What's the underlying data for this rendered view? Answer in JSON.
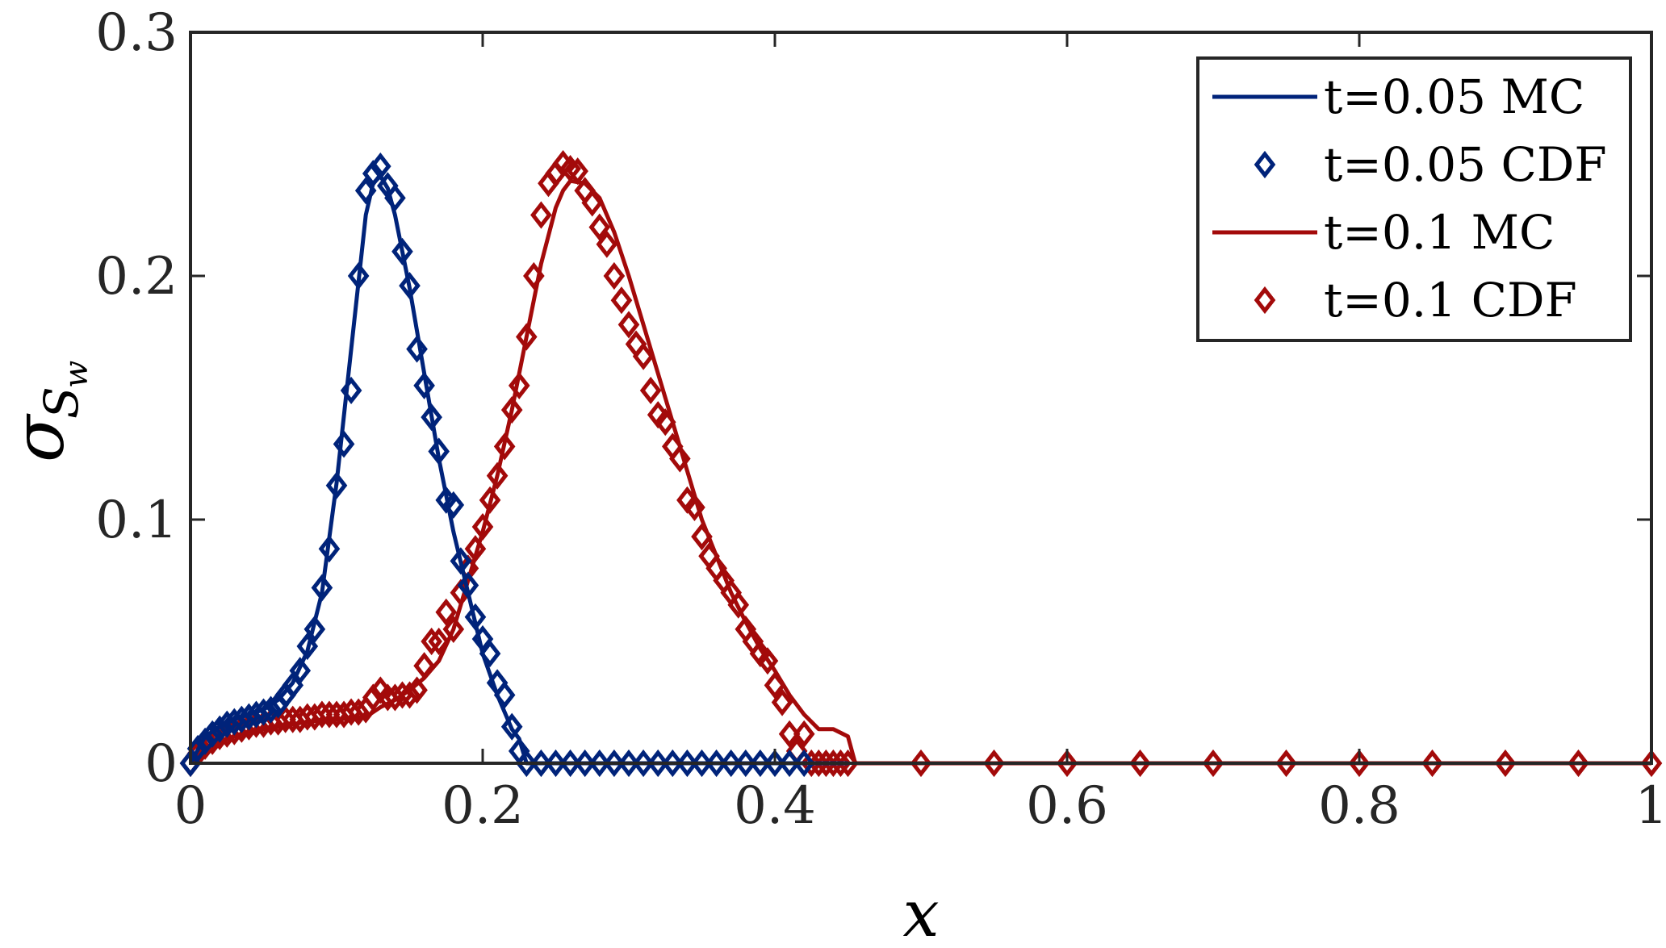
{
  "chart_data": {
    "type": "line",
    "xlabel": "x",
    "ylabel": {
      "main": "σ",
      "sub": "S",
      "subsub": "w"
    },
    "xlim": [
      0,
      1
    ],
    "ylim": [
      0,
      0.3
    ],
    "xticks": [
      0,
      0.2,
      0.4,
      0.6,
      0.8,
      1
    ],
    "xtick_labels": [
      "0",
      "0.2",
      "0.4",
      "0.6",
      "0.8",
      "1"
    ],
    "yticks": [
      0,
      0.1,
      0.2,
      0.3
    ],
    "ytick_labels": [
      "0",
      "0.1",
      "0.2",
      "0.3"
    ],
    "grid": false,
    "legend_position": "top-right",
    "series": [
      {
        "name": "t=0.05 MC",
        "style": "line",
        "color": "#00237a",
        "x": [
          0,
          0.01,
          0.02,
          0.03,
          0.04,
          0.05,
          0.06,
          0.07,
          0.08,
          0.09,
          0.1,
          0.11,
          0.12,
          0.125,
          0.13,
          0.135,
          0.14,
          0.15,
          0.16,
          0.17,
          0.18,
          0.19,
          0.2,
          0.21,
          0.22,
          0.225,
          0.23,
          0.24,
          0.3,
          0.4,
          0.45
        ],
        "values": [
          0,
          0.011,
          0.015,
          0.018,
          0.02,
          0.022,
          0.026,
          0.033,
          0.046,
          0.07,
          0.115,
          0.17,
          0.225,
          0.238,
          0.241,
          0.236,
          0.225,
          0.195,
          0.16,
          0.125,
          0.095,
          0.07,
          0.045,
          0.028,
          0.014,
          0.01,
          0,
          0,
          0,
          0,
          0
        ]
      },
      {
        "name": "t=0.05 CDF",
        "style": "marker",
        "color": "#00237a",
        "x": [
          0,
          0.005,
          0.01,
          0.015,
          0.02,
          0.025,
          0.03,
          0.035,
          0.04,
          0.045,
          0.05,
          0.055,
          0.06,
          0.065,
          0.07,
          0.075,
          0.08,
          0.085,
          0.09,
          0.095,
          0.1,
          0.105,
          0.11,
          0.115,
          0.12,
          0.125,
          0.13,
          0.135,
          0.14,
          0.145,
          0.15,
          0.155,
          0.16,
          0.165,
          0.17,
          0.175,
          0.18,
          0.185,
          0.19,
          0.195,
          0.2,
          0.205,
          0.21,
          0.215,
          0.22,
          0.225,
          0.23,
          0.24,
          0.25,
          0.26,
          0.27,
          0.28,
          0.29,
          0.3,
          0.31,
          0.32,
          0.33,
          0.34,
          0.35,
          0.36,
          0.37,
          0.38,
          0.39,
          0.4,
          0.41,
          0.42
        ],
        "values": [
          0,
          0.006,
          0.009,
          0.012,
          0.014,
          0.016,
          0.017,
          0.018,
          0.019,
          0.02,
          0.021,
          0.022,
          0.024,
          0.028,
          0.032,
          0.038,
          0.048,
          0.055,
          0.072,
          0.088,
          0.114,
          0.131,
          0.153,
          0.2,
          0.235,
          0.242,
          0.245,
          0.237,
          0.232,
          0.21,
          0.196,
          0.17,
          0.155,
          0.142,
          0.128,
          0.108,
          0.106,
          0.083,
          0.073,
          0.06,
          0.051,
          0.045,
          0.033,
          0.028,
          0.015,
          0.005,
          0,
          0,
          0,
          0,
          0,
          0,
          0,
          0,
          0,
          0,
          0,
          0,
          0,
          0,
          0,
          0,
          0,
          0,
          0,
          0
        ]
      },
      {
        "name": "t=0.1 MC",
        "style": "line",
        "color": "#a30a0a",
        "x": [
          0,
          0.01,
          0.02,
          0.04,
          0.06,
          0.08,
          0.1,
          0.12,
          0.13,
          0.14,
          0.15,
          0.16,
          0.17,
          0.18,
          0.19,
          0.2,
          0.21,
          0.22,
          0.23,
          0.24,
          0.25,
          0.255,
          0.26,
          0.27,
          0.28,
          0.29,
          0.3,
          0.31,
          0.32,
          0.33,
          0.34,
          0.35,
          0.36,
          0.37,
          0.38,
          0.39,
          0.4,
          0.41,
          0.42,
          0.43,
          0.44,
          0.45,
          0.455,
          0.5,
          0.6,
          0.7,
          0.8,
          0.9,
          1
        ],
        "values": [
          0,
          0.006,
          0.009,
          0.013,
          0.015,
          0.017,
          0.018,
          0.019,
          0.023,
          0.026,
          0.03,
          0.035,
          0.042,
          0.055,
          0.075,
          0.095,
          0.118,
          0.145,
          0.175,
          0.205,
          0.228,
          0.235,
          0.239,
          0.238,
          0.232,
          0.218,
          0.2,
          0.18,
          0.16,
          0.14,
          0.12,
          0.1,
          0.085,
          0.07,
          0.058,
          0.047,
          0.038,
          0.028,
          0.02,
          0.014,
          0.014,
          0.011,
          0,
          0,
          0,
          0,
          0,
          0,
          0
        ]
      },
      {
        "name": "t=0.1 CDF",
        "style": "marker",
        "color": "#a30a0a",
        "x": [
          0,
          0.005,
          0.01,
          0.015,
          0.02,
          0.025,
          0.03,
          0.035,
          0.04,
          0.045,
          0.05,
          0.055,
          0.06,
          0.065,
          0.07,
          0.075,
          0.08,
          0.085,
          0.09,
          0.095,
          0.1,
          0.105,
          0.11,
          0.115,
          0.12,
          0.125,
          0.13,
          0.135,
          0.14,
          0.145,
          0.15,
          0.155,
          0.16,
          0.165,
          0.17,
          0.175,
          0.18,
          0.185,
          0.19,
          0.195,
          0.2,
          0.205,
          0.21,
          0.215,
          0.22,
          0.225,
          0.23,
          0.235,
          0.24,
          0.245,
          0.25,
          0.255,
          0.26,
          0.265,
          0.27,
          0.275,
          0.28,
          0.285,
          0.29,
          0.295,
          0.3,
          0.305,
          0.31,
          0.315,
          0.32,
          0.325,
          0.33,
          0.335,
          0.34,
          0.345,
          0.35,
          0.355,
          0.36,
          0.365,
          0.37,
          0.375,
          0.38,
          0.385,
          0.39,
          0.395,
          0.4,
          0.405,
          0.41,
          0.415,
          0.42,
          0.425,
          0.43,
          0.435,
          0.44,
          0.445,
          0.45,
          0.5,
          0.55,
          0.6,
          0.65,
          0.7,
          0.75,
          0.8,
          0.85,
          0.9,
          0.95,
          1
        ],
        "values": [
          0,
          0.004,
          0.007,
          0.009,
          0.011,
          0.012,
          0.013,
          0.014,
          0.015,
          0.016,
          0.016,
          0.017,
          0.017,
          0.018,
          0.018,
          0.018,
          0.019,
          0.019,
          0.02,
          0.02,
          0.02,
          0.02,
          0.021,
          0.021,
          0.022,
          0.027,
          0.03,
          0.027,
          0.027,
          0.028,
          0.028,
          0.03,
          0.04,
          0.05,
          0.05,
          0.062,
          0.055,
          0.07,
          0.08,
          0.088,
          0.097,
          0.108,
          0.118,
          0.13,
          0.145,
          0.155,
          0.175,
          0.2,
          0.225,
          0.238,
          0.242,
          0.246,
          0.244,
          0.243,
          0.235,
          0.23,
          0.22,
          0.213,
          0.2,
          0.19,
          0.18,
          0.172,
          0.167,
          0.153,
          0.143,
          0.14,
          0.13,
          0.125,
          0.108,
          0.105,
          0.093,
          0.085,
          0.08,
          0.075,
          0.07,
          0.065,
          0.055,
          0.05,
          0.045,
          0.042,
          0.032,
          0.025,
          0.012,
          0.005,
          0.012,
          0,
          0,
          0,
          0,
          0,
          0,
          0,
          0,
          0,
          0,
          0,
          0,
          0,
          0,
          0,
          0,
          0
        ]
      }
    ]
  }
}
